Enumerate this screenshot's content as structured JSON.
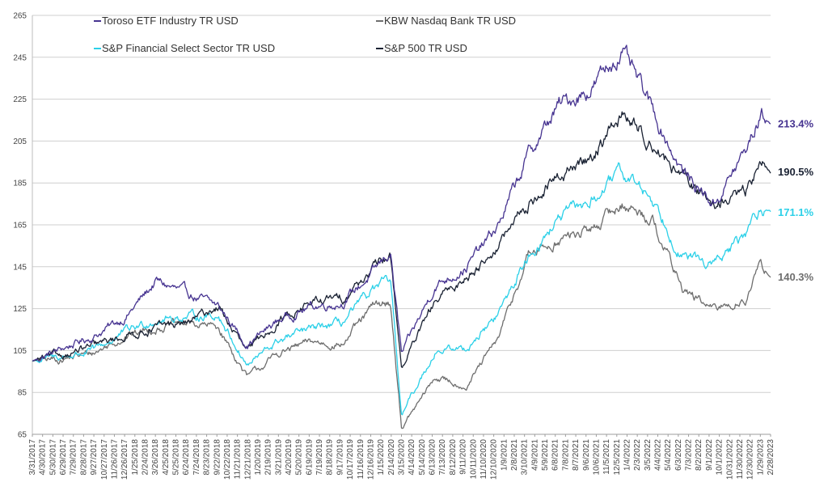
{
  "chart_data": {
    "type": "line",
    "title": "",
    "xlabel": "",
    "ylabel": "",
    "ylim": [
      65,
      265
    ],
    "y_ticks": [
      65,
      85,
      105,
      125,
      145,
      165,
      185,
      205,
      225,
      245,
      265
    ],
    "grid": "horizontal",
    "legend_position": "top-left",
    "x_tick_labels": [
      "3/31/2017",
      "4/30/2017",
      "5/30/2017",
      "6/29/2017",
      "7/29/2017",
      "8/28/2017",
      "9/27/2017",
      "10/27/2017",
      "11/26/2017",
      "12/26/2017",
      "1/25/2018",
      "2/24/2018",
      "3/26/2018",
      "4/25/2018",
      "5/25/2018",
      "6/24/2018",
      "7/24/2018",
      "8/23/2018",
      "9/22/2018",
      "10/22/2018",
      "11/21/2018",
      "12/21/2018",
      "1/20/2019",
      "2/19/2019",
      "3/21/2019",
      "4/20/2019",
      "5/20/2019",
      "6/19/2019",
      "7/19/2019",
      "8/18/2019",
      "9/17/2019",
      "10/17/2019",
      "11/16/2019",
      "12/16/2019",
      "1/15/2020",
      "2/14/2020",
      "3/15/2020",
      "4/14/2020",
      "5/14/2020",
      "6/13/2020",
      "7/13/2020",
      "8/12/2020",
      "9/11/2020",
      "10/11/2020",
      "11/10/2020",
      "12/10/2020",
      "1/9/2021",
      "2/8/2021",
      "3/10/2021",
      "4/9/2021",
      "5/9/2021",
      "6/8/2021",
      "7/8/2021",
      "8/7/2021",
      "9/6/2021",
      "10/6/2021",
      "11/5/2021",
      "12/5/2021",
      "1/4/2022",
      "2/3/2022",
      "3/5/2022",
      "4/4/2022",
      "5/4/2022",
      "6/3/2022",
      "7/3/2022",
      "8/2/2022",
      "9/1/2022",
      "10/1/2022",
      "10/31/2022",
      "11/30/2022",
      "12/30/2022",
      "1/29/2023",
      "2/28/2023"
    ],
    "x_dates": [
      "2017-03-31",
      "2017-06-30",
      "2017-09-30",
      "2017-12-31",
      "2018-03-31",
      "2018-06-30",
      "2018-09-30",
      "2018-12-24",
      "2019-03-31",
      "2019-06-30",
      "2019-09-30",
      "2019-12-31",
      "2020-02-19",
      "2020-03-23",
      "2020-06-30",
      "2020-09-30",
      "2020-12-31",
      "2021-03-31",
      "2021-06-30",
      "2021-09-30",
      "2021-12-31",
      "2022-03-31",
      "2022-06-30",
      "2022-09-30",
      "2022-12-31",
      "2023-02-15",
      "2023-03-15"
    ],
    "series": [
      {
        "name": "Toroso ETF Industry TR USD",
        "color": "#473491",
        "values": [
          100,
          106,
          112,
          121,
          138,
          132,
          126,
          108,
          120,
          126,
          128,
          142,
          152,
          103,
          136,
          145,
          164,
          198,
          222,
          230,
          248,
          220,
          190,
          175,
          200,
          218,
          213.4
        ]
      },
      {
        "name": "KBW Nasdaq Bank TR USD",
        "color": "#6e6e6e",
        "values": [
          100,
          101,
          104,
          112,
          116,
          118,
          116,
          92,
          104,
          109,
          108,
          126,
          128,
          68,
          92,
          88,
          110,
          150,
          158,
          162,
          175,
          168,
          134,
          124,
          130,
          145,
          140.3
        ]
      },
      {
        "name": "S&P Financial Select Sector TR USD",
        "color": "#2bd0e8",
        "values": [
          100,
          102,
          105,
          114,
          120,
          121,
          122,
          98,
          110,
          115,
          118,
          134,
          138,
          74,
          105,
          106,
          122,
          150,
          168,
          176,
          190,
          178,
          150,
          146,
          160,
          174,
          171.1
        ]
      },
      {
        "name": "S&P 500 TR USD",
        "color": "#1a2233",
        "values": [
          100,
          103,
          107,
          112,
          116,
          118,
          126,
          104,
          120,
          128,
          130,
          144,
          150,
          97,
          128,
          140,
          155,
          175,
          188,
          197,
          218,
          205,
          186,
          175,
          180,
          195,
          190.5
        ]
      }
    ],
    "end_labels": [
      {
        "text": "213.4%",
        "color": "#473491",
        "value": 213.4
      },
      {
        "text": "190.5%",
        "color": "#1a2233",
        "value": 190.5
      },
      {
        "text": "171.1%",
        "color": "#2bd0e8",
        "value": 171.1
      },
      {
        "text": "140.3%",
        "color": "#6e6e6e",
        "value": 140.3
      }
    ]
  }
}
